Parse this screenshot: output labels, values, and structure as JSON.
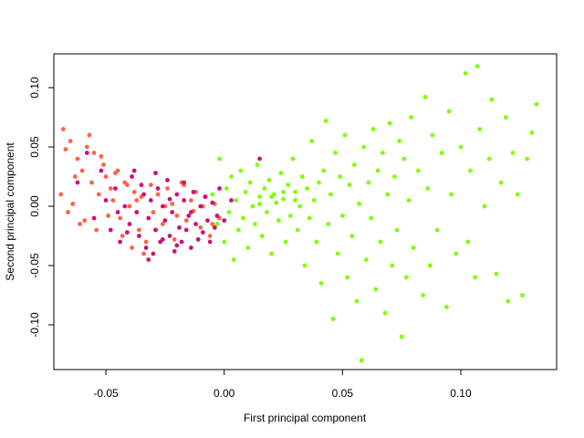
{
  "chart_data": {
    "type": "scatter",
    "x_label": "First principal component",
    "y_label": "Second principal component",
    "xlim": [
      -0.072,
      0.1405
    ],
    "ylim": [
      -0.1377,
      0.1285
    ],
    "xticks": [
      -0.05,
      {
        "value": 0,
        "label": "0.00"
      },
      0.05,
      {
        "value": 0.1,
        "label": "0.10"
      }
    ],
    "yticks": [
      {
        "value": -0.1,
        "label": "-0.10"
      },
      -0.05,
      {
        "value": 0,
        "label": "0.00"
      },
      0.05,
      {
        "value": 0.1,
        "label": "0.10"
      }
    ],
    "series": [
      {
        "color": "#ff6347",
        "x": [
          -0.068,
          -0.065,
          -0.062,
          -0.06,
          -0.058,
          -0.056,
          -0.055,
          -0.053,
          -0.051,
          -0.05,
          -0.048,
          -0.047,
          -0.045,
          -0.044,
          -0.042,
          -0.04,
          -0.038,
          -0.036,
          -0.035,
          -0.033,
          -0.031,
          -0.03,
          -0.028,
          -0.026,
          -0.024,
          -0.022,
          -0.02,
          -0.018,
          -0.016,
          -0.014,
          -0.012,
          -0.01,
          -0.008,
          -0.006,
          -0.004,
          -0.002,
          -0.069,
          -0.066,
          -0.063,
          -0.061,
          -0.059,
          -0.057,
          -0.054,
          -0.052,
          -0.049,
          -0.046,
          -0.043,
          -0.041,
          -0.039,
          -0.037,
          -0.034,
          -0.029,
          -0.025,
          -0.021,
          -0.017,
          -0.013,
          -0.009,
          -0.005,
          -0.067,
          -0.064
        ],
        "values": [
          0.065,
          0.055,
          0.04,
          0.03,
          0.05,
          0.02,
          0.045,
          0.01,
          0.035,
          0.025,
          0.015,
          0.005,
          0.03,
          -0.01,
          0.02,
          0.0,
          0.012,
          -0.02,
          0.008,
          -0.03,
          0.018,
          -0.005,
          0.01,
          -0.015,
          0.015,
          0.002,
          -0.008,
          0.02,
          -0.012,
          0.005,
          0.012,
          -0.018,
          0.008,
          -0.025,
          0.002,
          -0.01,
          0.01,
          -0.005,
          0.025,
          -0.015,
          -0.012,
          0.06,
          -0.02,
          0.042,
          -0.008,
          0.028,
          -0.025,
          0.018,
          -0.035,
          0.005,
          -0.04,
          -0.02,
          0.0,
          -0.028,
          0.018,
          -0.004,
          0.0,
          -0.015,
          0.048,
          0.002
        ]
      },
      {
        "color": "#cd1076",
        "x": [
          -0.062,
          -0.058,
          -0.055,
          -0.052,
          -0.05,
          -0.048,
          -0.046,
          -0.044,
          -0.042,
          -0.04,
          -0.039,
          -0.037,
          -0.036,
          -0.034,
          -0.033,
          -0.032,
          -0.031,
          -0.03,
          -0.029,
          -0.028,
          -0.027,
          -0.026,
          -0.025,
          -0.024,
          -0.023,
          -0.022,
          -0.021,
          -0.02,
          -0.019,
          -0.018,
          -0.017,
          -0.016,
          -0.015,
          -0.014,
          -0.013,
          -0.012,
          -0.011,
          -0.01,
          -0.009,
          -0.008,
          -0.007,
          -0.006,
          -0.005,
          -0.004,
          -0.003,
          -0.002,
          0.0,
          0.003,
          0.015,
          -0.045,
          -0.041,
          -0.038,
          -0.035,
          -0.032,
          -0.029,
          -0.026,
          -0.023,
          -0.02,
          -0.017,
          -0.014
        ],
        "values": [
          0.02,
          0.045,
          -0.01,
          0.03,
          0.005,
          -0.02,
          0.015,
          -0.03,
          0.0,
          -0.015,
          0.025,
          -0.005,
          -0.025,
          0.01,
          -0.035,
          -0.01,
          0.005,
          -0.04,
          -0.02,
          0.015,
          -0.03,
          0.0,
          -0.012,
          0.022,
          -0.025,
          -0.005,
          -0.038,
          0.01,
          -0.018,
          -0.03,
          0.005,
          -0.02,
          -0.008,
          -0.035,
          0.012,
          -0.015,
          -0.028,
          0.0,
          -0.022,
          0.008,
          -0.012,
          -0.03,
          0.003,
          -0.018,
          -0.008,
          0.015,
          -0.012,
          0.005,
          0.04,
          -0.005,
          -0.022,
          0.03,
          0.018,
          -0.045,
          0.028,
          -0.028,
          0.006,
          -0.033,
          0.02,
          -0.005
        ]
      },
      {
        "color": "#7fff00",
        "x": [
          -0.005,
          -0.003,
          -0.002,
          0.0,
          0.001,
          0.002,
          0.003,
          0.004,
          0.005,
          0.006,
          0.007,
          0.008,
          0.009,
          0.01,
          0.011,
          0.012,
          0.013,
          0.014,
          0.015,
          0.016,
          0.017,
          0.018,
          0.019,
          0.02,
          0.021,
          0.022,
          0.023,
          0.024,
          0.025,
          0.026,
          0.027,
          0.028,
          0.029,
          0.03,
          0.031,
          0.032,
          0.033,
          0.034,
          0.035,
          0.036,
          0.037,
          0.038,
          0.039,
          0.04,
          0.041,
          0.042,
          0.043,
          0.044,
          0.045,
          0.046,
          0.047,
          0.048,
          0.049,
          0.05,
          0.051,
          0.052,
          0.053,
          0.054,
          0.055,
          0.056,
          0.057,
          0.058,
          0.059,
          0.06,
          0.061,
          0.062,
          0.063,
          0.064,
          0.065,
          0.066,
          0.067,
          0.068,
          0.069,
          0.07,
          0.071,
          0.072,
          0.073,
          0.074,
          0.075,
          0.076,
          0.077,
          0.078,
          0.079,
          0.08,
          0.082,
          0.084,
          0.085,
          0.086,
          0.087,
          0.088,
          0.09,
          0.092,
          0.094,
          0.095,
          0.096,
          0.098,
          0.1,
          0.102,
          0.103,
          0.104,
          0.106,
          0.107,
          0.108,
          0.11,
          0.112,
          0.113,
          0.115,
          0.117,
          0.119,
          0.12,
          0.122,
          0.124,
          0.126,
          0.128,
          0.13,
          0.132,
          0.02,
          0.025,
          0.015,
          0.03
        ],
        "values": [
          0.01,
          -0.015,
          0.04,
          -0.03,
          0.015,
          -0.005,
          0.025,
          -0.045,
          0.005,
          -0.02,
          0.03,
          -0.01,
          0.012,
          -0.035,
          0.02,
          0.0,
          -0.015,
          0.035,
          0.008,
          -0.025,
          0.015,
          -0.005,
          0.022,
          -0.04,
          0.01,
          0.003,
          -0.012,
          0.028,
          0.006,
          -0.03,
          0.018,
          -0.008,
          0.04,
          0.012,
          -0.02,
          0.0,
          0.025,
          -0.05,
          0.015,
          -0.01,
          0.055,
          0.005,
          -0.03,
          0.02,
          -0.065,
          0.03,
          0.072,
          -0.015,
          0.01,
          -0.095,
          0.045,
          -0.04,
          0.025,
          -0.008,
          0.06,
          -0.06,
          0.018,
          -0.025,
          0.035,
          -0.08,
          0.002,
          -0.13,
          0.05,
          -0.045,
          0.02,
          -0.01,
          0.065,
          -0.07,
          0.03,
          -0.03,
          0.045,
          -0.09,
          0.01,
          0.07,
          -0.05,
          0.025,
          -0.02,
          0.055,
          -0.11,
          0.04,
          -0.06,
          0.005,
          0.075,
          -0.035,
          0.03,
          -0.075,
          0.092,
          0.015,
          -0.05,
          0.06,
          -0.02,
          0.045,
          -0.085,
          0.08,
          0.01,
          -0.04,
          0.05,
          0.112,
          -0.03,
          0.03,
          -0.06,
          0.118,
          0.065,
          0.0,
          0.04,
          0.09,
          -0.057,
          0.02,
          0.075,
          -0.08,
          0.045,
          0.01,
          -0.075,
          0.04,
          0.062,
          0.086,
          0.008,
          0.012,
          0.002,
          0.005
        ]
      }
    ]
  }
}
